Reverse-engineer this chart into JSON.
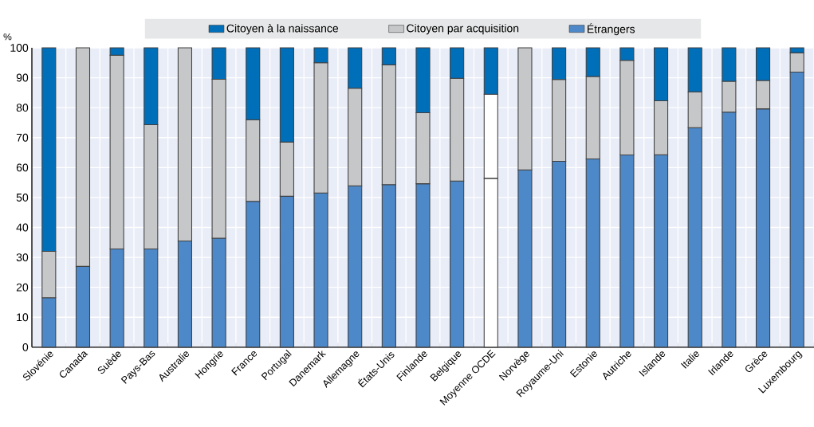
{
  "chart_data": {
    "type": "bar",
    "stacked": true,
    "ylabel": "%",
    "categories": [
      "Slovénie",
      "Canada",
      "Suède",
      "Pays-Bas",
      "Australie",
      "Hongrie",
      "France",
      "Portugal",
      "Danemark",
      "Allemagne",
      "États-Unis",
      "Finlande",
      "Belgique",
      "Moyenne OCDE",
      "Norvège",
      "Royaume-Uni",
      "Estonie",
      "Autriche",
      "Islande",
      "Italie",
      "Irlande",
      "Grèce",
      "Luxembourg"
    ],
    "series": [
      {
        "name": "Étrangers",
        "color": "#4d88c8",
        "colors": [
          "#4d88c8",
          "#4d88c8",
          "#4d88c8",
          "#4d88c8",
          "#4d88c8",
          "#4d88c8",
          "#4d88c8",
          "#4d88c8",
          "#4d88c8",
          "#4d88c8",
          "#4d88c8",
          "#4d88c8",
          "#4d88c8",
          "#ffffff",
          "#4d88c8",
          "#4d88c8",
          "#4d88c8",
          "#4d88c8",
          "#4d88c8",
          "#4d88c8",
          "#4d88c8",
          "#4d88c8",
          "#4d88c8"
        ],
        "values": [
          16.5,
          27,
          32.8,
          32.8,
          35.5,
          36.4,
          48.7,
          50.4,
          51.5,
          53.9,
          54.3,
          54.6,
          55.5,
          56.4,
          59.2,
          62.1,
          62.9,
          64.2,
          64.3,
          73.3,
          78.5,
          79.6,
          91.9
        ]
      },
      {
        "name": "Citoyen par acquisition",
        "color": "#c6c7c9",
        "colors": [
          "#c6c7c9",
          "#c6c7c9",
          "#c6c7c9",
          "#c6c7c9",
          "#c6c7c9",
          "#c6c7c9",
          "#c6c7c9",
          "#c6c7c9",
          "#c6c7c9",
          "#c6c7c9",
          "#c6c7c9",
          "#c6c7c9",
          "#c6c7c9",
          "#ffffff",
          "#c6c7c9",
          "#c6c7c9",
          "#c6c7c9",
          "#c6c7c9",
          "#c6c7c9",
          "#c6c7c9",
          "#c6c7c9",
          "#c6c7c9",
          "#c6c7c9"
        ],
        "values": [
          15.5,
          73,
          64.7,
          41.5,
          64.5,
          53.1,
          27.3,
          18.1,
          43.5,
          32.6,
          40,
          23.7,
          34.3,
          28.1,
          40.8,
          27.3,
          27.5,
          31.6,
          18,
          12,
          10.3,
          9.5,
          6.4
        ]
      },
      {
        "name": "Citoyen à la naissance",
        "color": "#006fba",
        "values": [
          68,
          0,
          2.5,
          25.7,
          0,
          10.5,
          24,
          31.5,
          5,
          13.5,
          5.7,
          21.7,
          10.2,
          15.5,
          0,
          10.6,
          9.6,
          4.2,
          17.7,
          14.7,
          11.2,
          10.9,
          1.7
        ]
      }
    ],
    "ylim": [
      0,
      100
    ],
    "yticks": [
      0,
      10,
      20,
      30,
      40,
      50,
      60,
      70,
      80,
      90,
      100
    ],
    "grid": true,
    "legend": "top"
  }
}
